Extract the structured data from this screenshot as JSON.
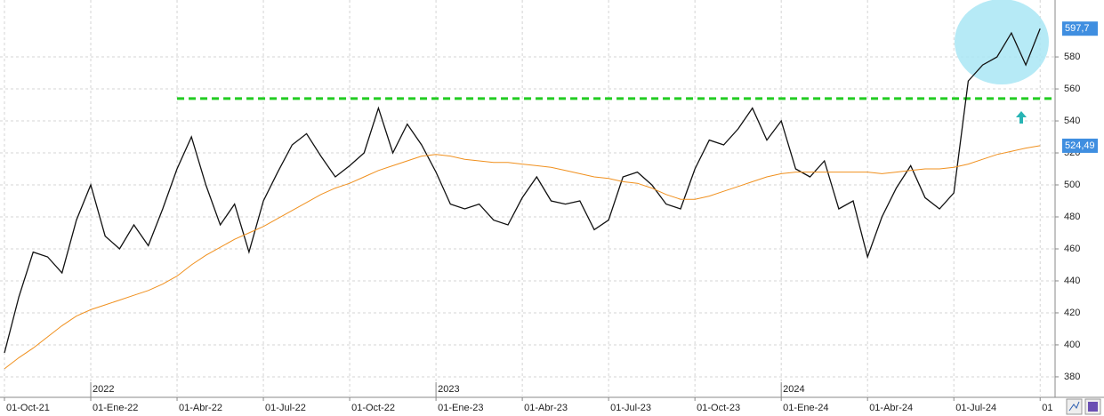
{
  "chart_data": {
    "type": "line",
    "categories": [
      "01-Oct-21",
      null,
      null,
      null,
      null,
      null,
      "01-Ene-22",
      null,
      null,
      null,
      null,
      null,
      "01-Abr-22",
      null,
      null,
      null,
      null,
      null,
      "01-Jul-22",
      null,
      null,
      null,
      null,
      null,
      "01-Oct-22",
      null,
      null,
      null,
      null,
      null,
      "01-Ene-23",
      null,
      null,
      null,
      null,
      null,
      "01-Abr-23",
      null,
      null,
      null,
      null,
      null,
      "01-Jul-23",
      null,
      null,
      null,
      null,
      null,
      "01-Oct-23",
      null,
      null,
      null,
      null,
      null,
      "01-Ene-24",
      null,
      null,
      null,
      null,
      null,
      "01-Abr-24",
      null,
      null,
      null,
      null,
      null,
      "01-Jul-24",
      null,
      null,
      null,
      null,
      null,
      "01"
    ],
    "year_markers": [
      {
        "at": 6,
        "label": "2022"
      },
      {
        "at": 30,
        "label": "2023"
      },
      {
        "at": 54,
        "label": "2024"
      }
    ],
    "series": [
      {
        "color": "#111111",
        "label_color": "#3f8ee0",
        "values": [
          395,
          430,
          458,
          455,
          445,
          478,
          500,
          468,
          460,
          475,
          462,
          485,
          510,
          530,
          500,
          475,
          488,
          458,
          490,
          508,
          525,
          532,
          518,
          505,
          512,
          520,
          548,
          520,
          538,
          525,
          508,
          488,
          485,
          488,
          478,
          475,
          492,
          505,
          490,
          488,
          490,
          472,
          478,
          505,
          508,
          500,
          488,
          485,
          510,
          528,
          525,
          535,
          548,
          528,
          540,
          510,
          505,
          515,
          485,
          490,
          455,
          480,
          498,
          512,
          492,
          485,
          495,
          565,
          575,
          580,
          595,
          575,
          597.7
        ],
        "value_labels": [
          null,
          null,
          null,
          null,
          null,
          null,
          null,
          null,
          null,
          null,
          null,
          null,
          null,
          null,
          null,
          null,
          null,
          null,
          null,
          null,
          null,
          null,
          null,
          null,
          null,
          null,
          null,
          null,
          null,
          null,
          null,
          null,
          null,
          null,
          null,
          null,
          null,
          null,
          null,
          null,
          null,
          null,
          null,
          null,
          null,
          null,
          null,
          null,
          null,
          null,
          null,
          null,
          null,
          null,
          null,
          null,
          null,
          null,
          null,
          null,
          null,
          null,
          null,
          null,
          null,
          null,
          null,
          null,
          null,
          null,
          null,
          null,
          "597,7"
        ]
      },
      {
        "color": "#f0901e",
        "label_color": "#3f8ee0",
        "values": [
          385,
          392,
          398,
          405,
          412,
          418,
          422,
          425,
          428,
          431,
          434,
          438,
          443,
          450,
          456,
          461,
          466,
          470,
          474,
          479,
          484,
          489,
          494,
          498,
          501,
          505,
          509,
          512,
          515,
          518,
          519,
          518,
          516,
          515,
          514,
          514,
          513,
          512,
          511,
          509,
          507,
          505,
          504,
          502,
          501,
          498,
          494,
          491,
          491,
          493,
          496,
          499,
          502,
          505,
          507,
          508,
          508,
          508,
          508,
          508,
          508,
          507,
          508,
          509,
          510,
          510,
          511,
          513,
          516,
          519,
          521,
          523,
          524.49
        ],
        "value_labels": [
          null,
          null,
          null,
          null,
          null,
          null,
          null,
          null,
          null,
          null,
          null,
          null,
          null,
          null,
          null,
          null,
          null,
          null,
          null,
          null,
          null,
          null,
          null,
          null,
          null,
          null,
          null,
          null,
          null,
          null,
          null,
          null,
          null,
          null,
          null,
          null,
          null,
          null,
          null,
          null,
          null,
          null,
          null,
          null,
          null,
          null,
          null,
          null,
          null,
          null,
          null,
          null,
          null,
          null,
          null,
          null,
          null,
          null,
          null,
          null,
          null,
          null,
          null,
          null,
          null,
          null,
          null,
          null,
          null,
          null,
          null,
          null,
          "524,49"
        ]
      }
    ],
    "reference_line": {
      "value": 554,
      "from": 12,
      "color": "#22cc22"
    },
    "ylim": [
      368.3,
      615.6
    ],
    "yticks": [
      380,
      400,
      420,
      440,
      460,
      480,
      500,
      520,
      540,
      560,
      580
    ],
    "grid": true
  }
}
